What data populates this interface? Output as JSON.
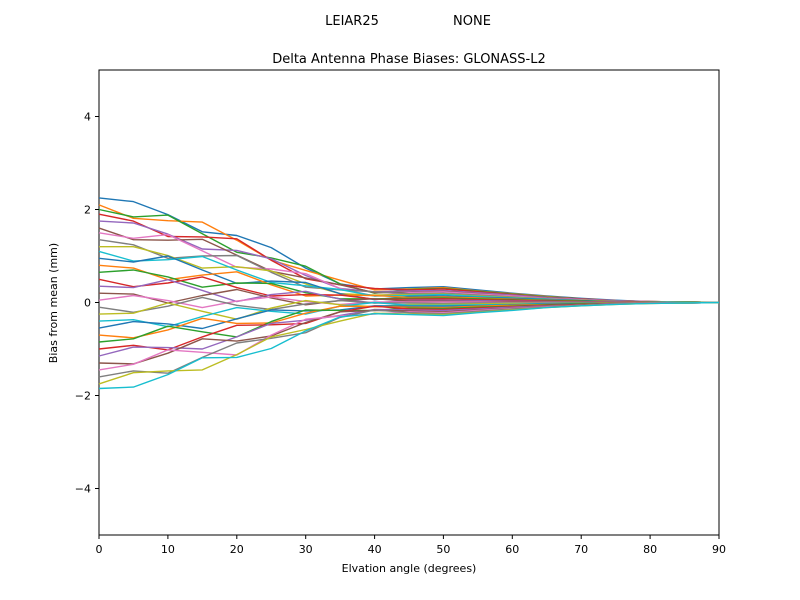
{
  "figure": {
    "suptitle_left": "LEIAR25",
    "suptitle_right": "NONE",
    "title": "Delta Antenna Phase Biases: GLONASS-L2",
    "xlabel": "Elvation angle (degrees)",
    "ylabel": "Bias from mean (mm)",
    "background_color": "#ffffff",
    "axes_color": "#000000",
    "text_color": "#000000"
  },
  "chart_data": {
    "type": "line",
    "title": "Delta Antenna Phase Biases: GLONASS-L2",
    "suptitle": "LEIAR25        NONE",
    "xlabel": "Elvation angle (degrees)",
    "ylabel": "Bias from mean (mm)",
    "xlim": [
      0,
      90
    ],
    "ylim": [
      -5,
      5
    ],
    "x_ticks": [
      0,
      10,
      20,
      30,
      40,
      50,
      60,
      70,
      80,
      90
    ],
    "y_ticks": [
      -4,
      -2,
      0,
      2,
      4
    ],
    "grid": false,
    "legend": "none",
    "x": [
      0,
      5,
      10,
      15,
      20,
      25,
      30,
      35,
      40,
      45,
      50,
      55,
      60,
      65,
      70,
      75,
      80,
      85,
      90
    ],
    "series": [
      {
        "name": "line-01",
        "color": "#1f77b4",
        "values": [
          2.25,
          2.17,
          1.89,
          1.52,
          1.44,
          1.18,
          0.74,
          0.4,
          0.29,
          0.32,
          0.34,
          0.27,
          0.2,
          0.14,
          0.09,
          0.05,
          0.02,
          0.01,
          0
        ]
      },
      {
        "name": "line-02",
        "color": "#ff7f0e",
        "values": [
          2.1,
          1.81,
          1.76,
          1.73,
          1.34,
          0.91,
          0.69,
          0.48,
          0.27,
          0.29,
          0.32,
          0.25,
          0.19,
          0.13,
          0.08,
          0.04,
          0.02,
          0.01,
          0
        ]
      },
      {
        "name": "line-03",
        "color": "#2ca02c",
        "values": [
          2.0,
          1.84,
          1.88,
          1.48,
          1.08,
          0.96,
          0.78,
          0.4,
          0.2,
          0.28,
          0.3,
          0.24,
          0.18,
          0.12,
          0.08,
          0.04,
          0.02,
          0.01,
          0
        ]
      },
      {
        "name": "line-04",
        "color": "#d62728",
        "values": [
          1.9,
          1.75,
          1.42,
          1.41,
          1.37,
          0.91,
          0.51,
          0.38,
          0.3,
          0.27,
          0.29,
          0.23,
          0.17,
          0.11,
          0.08,
          0.04,
          0.02,
          0.01,
          0
        ]
      },
      {
        "name": "line-05",
        "color": "#9467bd",
        "values": [
          1.75,
          1.71,
          1.47,
          1.15,
          1.12,
          0.94,
          0.58,
          0.3,
          0.23,
          0.25,
          0.26,
          0.21,
          0.16,
          0.11,
          0.07,
          0.04,
          0.02,
          0.01,
          0
        ]
      },
      {
        "name": "line-06",
        "color": "#8c564b",
        "values": [
          1.6,
          1.35,
          1.34,
          1.36,
          1.02,
          0.67,
          0.53,
          0.38,
          0.21,
          0.22,
          0.24,
          0.19,
          0.14,
          0.1,
          0.06,
          0.03,
          0.02,
          0.01,
          0
        ]
      },
      {
        "name": "line-07",
        "color": "#e377c2",
        "values": [
          1.5,
          1.38,
          1.46,
          1.11,
          0.76,
          0.72,
          0.62,
          0.3,
          0.14,
          0.21,
          0.23,
          0.18,
          0.14,
          0.09,
          0.06,
          0.03,
          0.02,
          0.01,
          0
        ]
      },
      {
        "name": "line-08",
        "color": "#7f7f7f",
        "values": [
          1.35,
          1.24,
          0.95,
          1.0,
          1.01,
          0.65,
          0.33,
          0.27,
          0.23,
          0.19,
          0.2,
          0.16,
          0.12,
          0.08,
          0.05,
          0.03,
          0.01,
          0.01,
          0
        ]
      },
      {
        "name": "line-09",
        "color": "#bcbd22",
        "values": [
          1.2,
          1.2,
          1.01,
          0.74,
          0.77,
          0.68,
          0.4,
          0.19,
          0.16,
          0.17,
          0.18,
          0.14,
          0.11,
          0.07,
          0.05,
          0.02,
          0.01,
          0.01,
          0
        ]
      },
      {
        "name": "line-10",
        "color": "#17becf",
        "values": [
          1.1,
          0.89,
          0.92,
          0.99,
          0.7,
          0.43,
          0.36,
          0.28,
          0.14,
          0.15,
          0.17,
          0.13,
          0.1,
          0.07,
          0.04,
          0.02,
          0.01,
          0.01,
          0
        ]
      },
      {
        "name": "line-11",
        "color": "#1f77b4",
        "values": [
          0.95,
          0.87,
          1.0,
          0.7,
          0.41,
          0.46,
          0.43,
          0.19,
          0.06,
          0.13,
          0.14,
          0.11,
          0.09,
          0.06,
          0.04,
          0.02,
          0.01,
          0,
          0
        ]
      },
      {
        "name": "line-12",
        "color": "#ff7f0e",
        "values": [
          0.8,
          0.74,
          0.49,
          0.59,
          0.66,
          0.38,
          0.14,
          0.16,
          0.15,
          0.11,
          0.12,
          0.1,
          0.07,
          0.05,
          0.03,
          0.02,
          0.01,
          0,
          0
        ]
      },
      {
        "name": "line-13",
        "color": "#2ca02c",
        "values": [
          0.65,
          0.7,
          0.55,
          0.33,
          0.42,
          0.41,
          0.21,
          0.08,
          0.08,
          0.09,
          0.1,
          0.08,
          0.06,
          0.04,
          0.03,
          0.01,
          0.01,
          0,
          0
        ]
      },
      {
        "name": "line-14",
        "color": "#d62728",
        "values": [
          0.5,
          0.34,
          0.42,
          0.55,
          0.32,
          0.14,
          0.17,
          0.16,
          0.07,
          0.07,
          0.08,
          0.06,
          0.05,
          0.03,
          0.02,
          0.01,
          0.01,
          0,
          0
        ]
      },
      {
        "name": "line-15",
        "color": "#9467bd",
        "values": [
          0.35,
          0.32,
          0.49,
          0.26,
          0.02,
          0.17,
          0.24,
          0.07,
          -0.01,
          0.05,
          0.05,
          0.04,
          0.03,
          0.02,
          0.01,
          0.01,
          0,
          0,
          0
        ]
      },
      {
        "name": "line-16",
        "color": "#8c564b",
        "values": [
          0.2,
          0.18,
          -0.01,
          0.15,
          0.28,
          0.1,
          -0.05,
          0.04,
          0.08,
          0.03,
          0.03,
          0.02,
          0.02,
          0.01,
          0.01,
          0,
          0,
          0,
          0
        ]
      },
      {
        "name": "line-17",
        "color": "#e377c2",
        "values": [
          0.05,
          0.15,
          0.04,
          -0.11,
          0.03,
          0.12,
          0.02,
          -0.04,
          0.01,
          0.01,
          0.01,
          0.01,
          0,
          0,
          0,
          0,
          0,
          0,
          0
        ]
      },
      {
        "name": "line-18",
        "color": "#7f7f7f",
        "values": [
          -0.1,
          -0.21,
          -0.08,
          0.11,
          -0.06,
          -0.15,
          -0.03,
          0.04,
          -0.01,
          -0.01,
          -0.02,
          -0.01,
          -0.01,
          -0.01,
          0,
          0,
          0,
          0,
          0
        ]
      },
      {
        "name": "line-19",
        "color": "#bcbd22",
        "values": [
          -0.25,
          -0.23,
          -0.01,
          -0.19,
          -0.36,
          -0.12,
          0.04,
          -0.05,
          -0.09,
          -0.04,
          -0.04,
          -0.03,
          -0.02,
          -0.02,
          -0.01,
          -0.01,
          0,
          0,
          0
        ]
      },
      {
        "name": "line-20",
        "color": "#17becf",
        "values": [
          -0.4,
          -0.37,
          -0.52,
          -0.3,
          -0.11,
          -0.19,
          -0.25,
          -0.08,
          0,
          -0.06,
          -0.06,
          -0.05,
          -0.04,
          -0.02,
          -0.02,
          -0.01,
          0,
          0,
          0
        ]
      },
      {
        "name": "line-21",
        "color": "#1f77b4",
        "values": [
          -0.55,
          -0.41,
          -0.46,
          -0.56,
          -0.35,
          -0.16,
          -0.18,
          -0.16,
          -0.07,
          -0.08,
          -0.08,
          -0.07,
          -0.05,
          -0.03,
          -0.02,
          -0.01,
          -0.01,
          0,
          0
        ]
      },
      {
        "name": "line-22",
        "color": "#ff7f0e",
        "values": [
          -0.7,
          -0.76,
          -0.59,
          -0.34,
          -0.45,
          -0.44,
          -0.23,
          -0.08,
          -0.09,
          -0.1,
          -0.11,
          -0.08,
          -0.06,
          -0.04,
          -0.03,
          -0.01,
          -0.01,
          0,
          0
        ]
      },
      {
        "name": "line-23",
        "color": "#2ca02c",
        "values": [
          -0.85,
          -0.78,
          -0.51,
          -0.63,
          -0.74,
          -0.41,
          -0.16,
          -0.17,
          -0.17,
          -0.12,
          -0.13,
          -0.1,
          -0.08,
          -0.05,
          -0.03,
          -0.02,
          -0.01,
          0,
          0
        ]
      },
      {
        "name": "line-24",
        "color": "#d62728",
        "values": [
          -1.0,
          -0.92,
          -1.02,
          -0.74,
          -0.49,
          -0.48,
          -0.45,
          -0.2,
          -0.08,
          -0.14,
          -0.15,
          -0.12,
          -0.09,
          -0.06,
          -0.04,
          -0.02,
          -0.01,
          -0.01,
          0
        ]
      },
      {
        "name": "line-25",
        "color": "#9467bd",
        "values": [
          -1.15,
          -0.96,
          -0.97,
          -1.0,
          -0.74,
          -0.45,
          -0.38,
          -0.28,
          -0.15,
          -0.16,
          -0.17,
          -0.14,
          -0.1,
          -0.07,
          -0.05,
          -0.02,
          -0.01,
          -0.01,
          0
        ]
      },
      {
        "name": "line-26",
        "color": "#8c564b",
        "values": [
          -1.3,
          -1.32,
          -1.09,
          -0.78,
          -0.83,
          -0.72,
          -0.43,
          -0.2,
          -0.17,
          -0.18,
          -0.2,
          -0.16,
          -0.12,
          -0.08,
          -0.05,
          -0.03,
          -0.01,
          -0.01,
          0
        ]
      },
      {
        "name": "line-27",
        "color": "#e377c2",
        "values": [
          -1.45,
          -1.33,
          -1.02,
          -1.07,
          -1.13,
          -0.7,
          -0.36,
          -0.29,
          -0.25,
          -0.2,
          -0.22,
          -0.17,
          -0.13,
          -0.09,
          -0.06,
          -0.03,
          -0.01,
          -0.01,
          0
        ]
      },
      {
        "name": "line-28",
        "color": "#7f7f7f",
        "values": [
          -1.6,
          -1.47,
          -1.52,
          -1.18,
          -0.87,
          -0.77,
          -0.65,
          -0.32,
          -0.16,
          -0.22,
          -0.24,
          -0.19,
          -0.14,
          -0.1,
          -0.06,
          -0.03,
          -0.02,
          -0.01,
          0
        ]
      },
      {
        "name": "line-29",
        "color": "#bcbd22",
        "values": [
          -1.75,
          -1.51,
          -1.47,
          -1.45,
          -1.12,
          -0.74,
          -0.58,
          -0.4,
          -0.23,
          -0.25,
          -0.26,
          -0.21,
          -0.16,
          -0.11,
          -0.07,
          -0.04,
          -0.02,
          -0.01,
          0
        ]
      },
      {
        "name": "line-30",
        "color": "#17becf",
        "values": [
          -1.85,
          -1.82,
          -1.55,
          -1.19,
          -1.18,
          -0.99,
          -0.61,
          -0.31,
          -0.24,
          -0.26,
          -0.28,
          -0.22,
          -0.17,
          -0.11,
          -0.07,
          -0.04,
          -0.02,
          -0.01,
          0
        ]
      }
    ]
  }
}
